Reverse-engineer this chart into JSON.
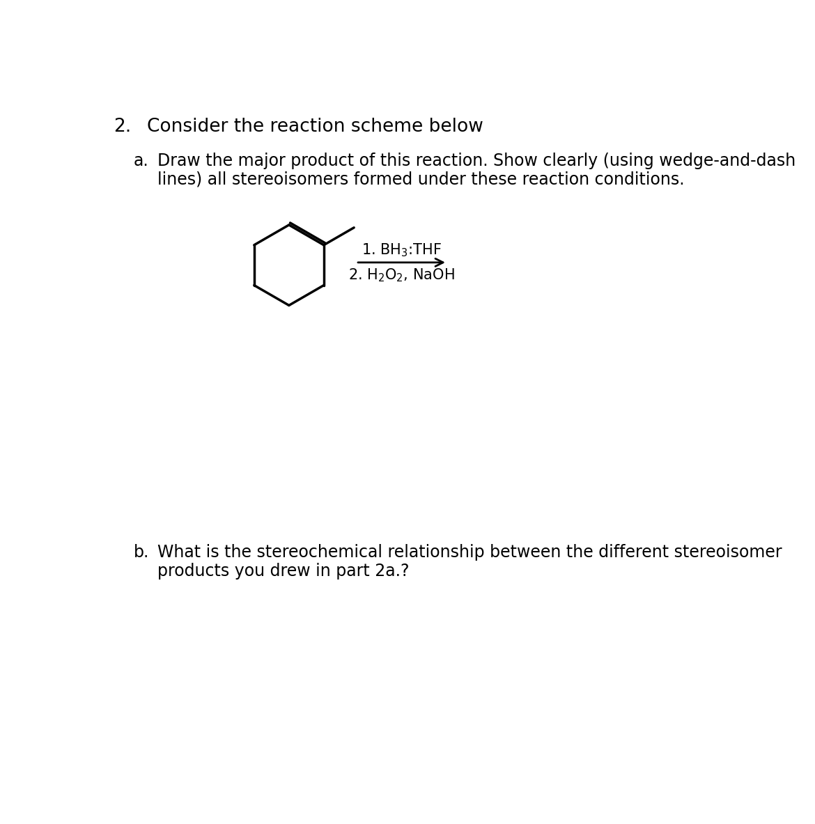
{
  "title_number": "2.",
  "title_text": "Consider the reaction scheme below",
  "part_a_label": "a.",
  "part_a_text_line1": "Draw the major product of this reaction. Show clearly (using wedge-and-dash",
  "part_a_text_line2": "lines) all stereoisomers formed under these reaction conditions.",
  "part_b_label": "b.",
  "part_b_text_line1": "What is the stereochemical relationship between the different stereoisomer",
  "part_b_text_line2": "products you drew in part 2a.?",
  "background_color": "#ffffff",
  "text_color": "#000000",
  "font_size_title": 19,
  "font_size_body": 17,
  "font_size_reagent": 15
}
